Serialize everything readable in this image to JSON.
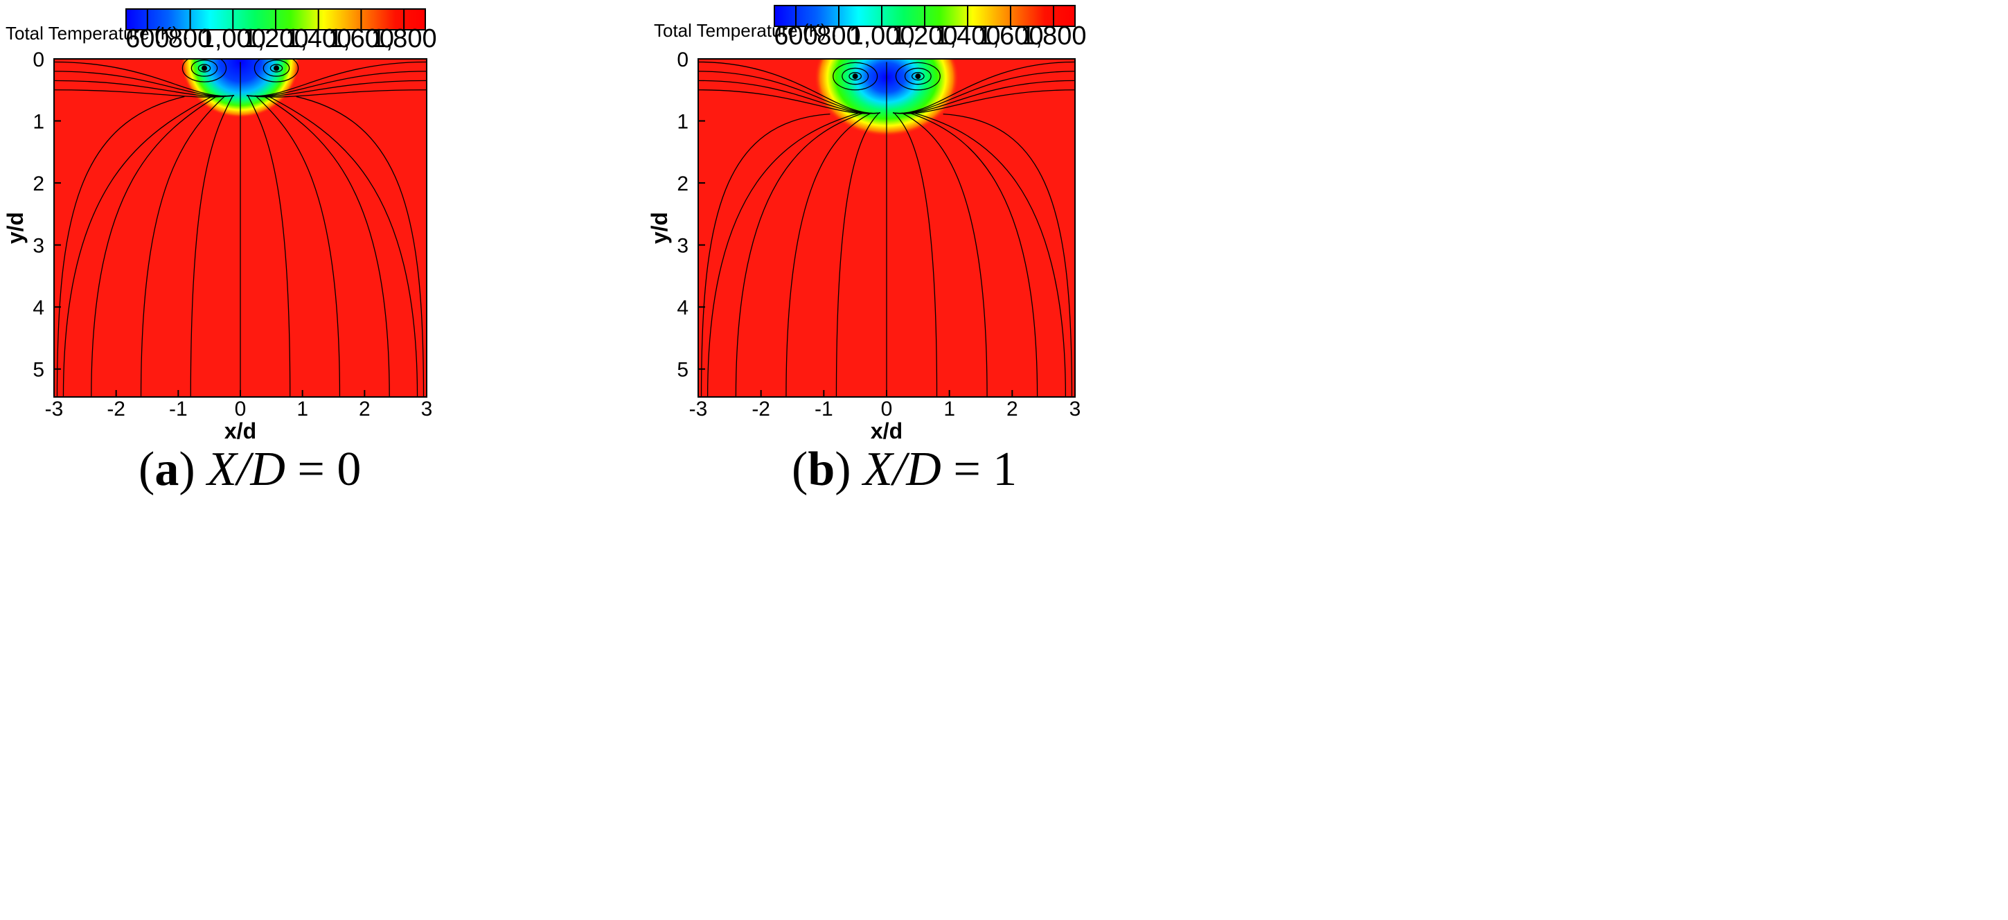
{
  "chart_data": [
    {
      "type": "heatmap",
      "colorbar": {
        "label": "Total Temperature",
        "unit": "(K) :",
        "ticks": [
          "600",
          "800",
          "1,000",
          "1,200",
          "1,400",
          "1,600",
          "1,800"
        ],
        "tick_values": [
          600,
          800,
          1000,
          1200,
          1400,
          1600,
          1800
        ],
        "range": [
          500,
          1900
        ]
      },
      "xlabel": "x/d",
      "ylabel": "y/d",
      "xlim": [
        -3,
        3
      ],
      "ylim": [
        5.45,
        0
      ],
      "xticks": [
        "-3",
        "-2",
        "-1",
        "0",
        "1",
        "2",
        "3"
      ],
      "yticks": [
        "0",
        "1",
        "2",
        "3",
        "4",
        "5"
      ],
      "background_temperature": 1850,
      "cold_core": {
        "center_x": 0,
        "center_y": 0.05,
        "radius_x": 0.95,
        "radius_y": 0.9,
        "min_temperature": 560
      },
      "vortex_centers": [
        [
          -0.58,
          0.15
        ],
        [
          0.58,
          0.15
        ]
      ],
      "caption": {
        "letter": "a",
        "var": "X/D",
        "equals": "= 0"
      }
    },
    {
      "type": "heatmap",
      "colorbar": {
        "label": "Total Temperature",
        "unit": "(K) :",
        "ticks": [
          "600",
          "800",
          "1,000",
          "1,200",
          "1,400",
          "1,600",
          "1,800"
        ],
        "tick_values": [
          600,
          800,
          1000,
          1200,
          1400,
          1600,
          1800
        ],
        "range": [
          500,
          1900
        ]
      },
      "xlabel": "x/d",
      "ylabel": "y/d",
      "xlim": [
        -3,
        3
      ],
      "ylim": [
        5.45,
        0
      ],
      "xticks": [
        "-3",
        "-2",
        "-1",
        "0",
        "1",
        "2",
        "3"
      ],
      "yticks": [
        "0",
        "1",
        "2",
        "3",
        "4",
        "5"
      ],
      "background_temperature": 1850,
      "cold_core": {
        "center_x": 0,
        "center_y": 0.3,
        "radius_x": 1.15,
        "radius_y": 0.95,
        "min_temperature": 570
      },
      "vortex_centers": [
        [
          -0.5,
          0.28
        ],
        [
          0.5,
          0.28
        ]
      ],
      "caption": {
        "letter": "b",
        "var": "X/D",
        "equals": "= 1"
      }
    }
  ],
  "colors": {
    "colormap": [
      "#0000ff",
      "#0080ff",
      "#00ffff",
      "#00ff80",
      "#00ff00",
      "#80ff00",
      "#ffff00",
      "#ff8000",
      "#ff0000",
      "#ff0000"
    ],
    "background": "#ff1a10",
    "streamline": "#000000"
  }
}
